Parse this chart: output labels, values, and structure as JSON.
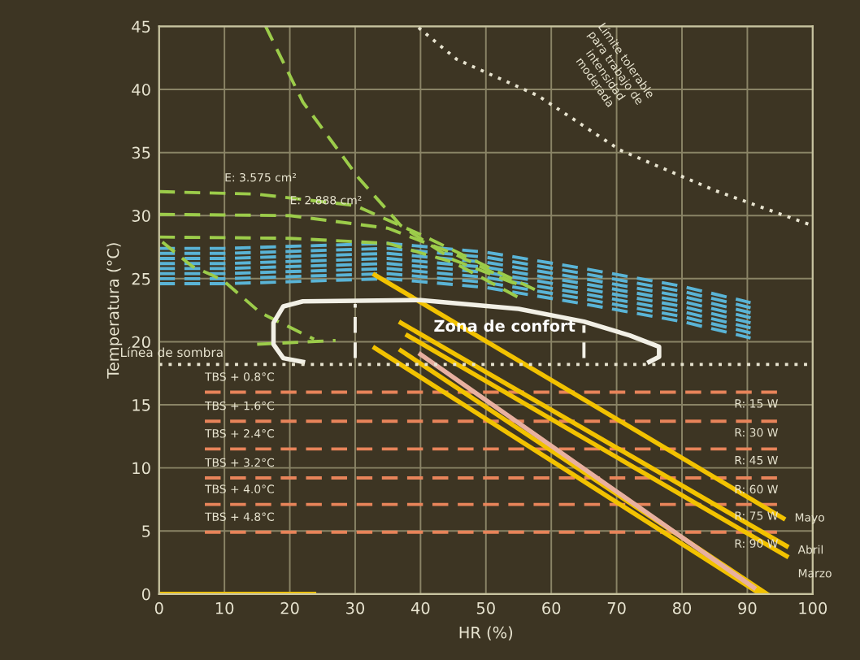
{
  "chart_data": {
    "type": "line",
    "xlabel": "HR (%)",
    "ylabel": "Temperatura (°C)",
    "xlim": [
      0,
      100
    ],
    "ylim": [
      0,
      45
    ],
    "xticks": [
      0,
      10,
      20,
      30,
      40,
      50,
      60,
      70,
      80,
      90,
      100
    ],
    "yticks": [
      0,
      5,
      10,
      15,
      20,
      25,
      30,
      35,
      40,
      45
    ],
    "grid": true,
    "marker": "none",
    "ref_lines": [
      {
        "axis": "y",
        "value": 18.2,
        "label": "Línea de sombra",
        "color": "#e8e4d0",
        "line_style": "dotted"
      }
    ],
    "series": [
      {
        "color": "#5ab4d6",
        "line_style": "dashed",
        "x": [
          0,
          10,
          35,
          50,
          65,
          80,
          90.5
        ],
        "values": [
          24.6,
          24.6,
          25.0,
          24.3,
          23.0,
          21.6,
          20.3
        ]
      },
      {
        "color": "#5ab4d6",
        "line_style": "dashed",
        "x": [
          0,
          10,
          35,
          50,
          65,
          80,
          90.5
        ],
        "values": [
          25.0,
          25.0,
          25.4,
          24.7,
          23.4,
          22.0,
          20.7
        ]
      },
      {
        "color": "#5ab4d6",
        "line_style": "dashed",
        "x": [
          0,
          10,
          35,
          50,
          65,
          80,
          90.5
        ],
        "values": [
          25.4,
          25.4,
          25.8,
          25.1,
          23.8,
          22.4,
          21.1
        ]
      },
      {
        "color": "#5ab4d6",
        "line_style": "dashed",
        "x": [
          0,
          10,
          35,
          50,
          65,
          80,
          90.5
        ],
        "values": [
          25.8,
          25.8,
          26.2,
          25.5,
          24.2,
          22.8,
          21.5
        ]
      },
      {
        "color": "#5ab4d6",
        "line_style": "dashed",
        "x": [
          0,
          10,
          35,
          50,
          65,
          80,
          90.5
        ],
        "values": [
          26.2,
          26.2,
          26.6,
          25.9,
          24.6,
          23.2,
          21.9
        ]
      },
      {
        "color": "#5ab4d6",
        "line_style": "dashed",
        "x": [
          0,
          10,
          35,
          50,
          65,
          80,
          90.5
        ],
        "values": [
          26.6,
          26.6,
          27.0,
          26.3,
          25.0,
          23.6,
          22.3
        ]
      },
      {
        "color": "#5ab4d6",
        "line_style": "dashed",
        "x": [
          0,
          10,
          35,
          50,
          65,
          80,
          90.5
        ],
        "values": [
          27.0,
          27.0,
          27.4,
          26.7,
          25.4,
          24.0,
          22.7
        ]
      },
      {
        "color": "#5ab4d6",
        "line_style": "dashed",
        "x": [
          0,
          10,
          35,
          50,
          65,
          80,
          90.5
        ],
        "values": [
          27.4,
          27.4,
          27.8,
          27.1,
          25.8,
          24.4,
          23.1
        ]
      },
      {
        "color": "#9ccc4a",
        "line_style": "dashed",
        "x": [
          16.3,
          22,
          30.5,
          37,
          45,
          55
        ],
        "values": [
          45,
          39,
          33,
          29.2,
          26.5,
          24.5
        ]
      },
      {
        "color": "#9ccc4a",
        "line_style": "dashed",
        "x": [
          0,
          15,
          30,
          40,
          50,
          58
        ],
        "values": [
          31.9,
          31.7,
          30.8,
          28.5,
          26,
          24
        ]
      },
      {
        "color": "#9ccc4a",
        "line_style": "dashed",
        "x": [
          0,
          20,
          35,
          45,
          55
        ],
        "values": [
          30.1,
          30,
          29,
          27,
          24.5
        ]
      },
      {
        "color": "#9ccc4a",
        "line_style": "dashed",
        "x": [
          0,
          20,
          35,
          45,
          55
        ],
        "values": [
          28.3,
          28.2,
          27.8,
          26.3,
          23.5
        ]
      },
      {
        "color": "#9ccc4a",
        "line_style": "dashed",
        "x": [
          0.5,
          5,
          9.7,
          15.5,
          23.7
        ],
        "values": [
          27.9,
          26,
          24.9,
          22.3,
          20.2
        ]
      },
      {
        "color": "#9ccc4a",
        "line_style": "dashed",
        "x": [
          15,
          27
        ],
        "values": [
          19.8,
          20.1
        ]
      },
      {
        "color": "#e8845a",
        "line_style": "dashed",
        "x": [
          7,
          95
        ],
        "values": [
          16.0,
          16.0
        ]
      },
      {
        "color": "#e8845a",
        "line_style": "dashed",
        "x": [
          7,
          95
        ],
        "values": [
          13.7,
          13.7
        ]
      },
      {
        "color": "#e8845a",
        "line_style": "dashed",
        "x": [
          7,
          95
        ],
        "values": [
          11.5,
          11.5
        ]
      },
      {
        "color": "#e8845a",
        "line_style": "dashed",
        "x": [
          7,
          95
        ],
        "values": [
          9.2,
          9.2
        ]
      },
      {
        "color": "#e8845a",
        "line_style": "dashed",
        "x": [
          7,
          95
        ],
        "values": [
          7.1,
          7.1
        ]
      },
      {
        "color": "#e8845a",
        "line_style": "dashed",
        "x": [
          7,
          95
        ],
        "values": [
          4.9,
          4.9
        ]
      },
      {
        "color": "#f2c200",
        "line_style": "solid",
        "x": [
          33,
          95.5
        ],
        "values": [
          25.3,
          6.0
        ]
      },
      {
        "color": "#f2c200",
        "line_style": "solid",
        "x": [
          37,
          96
        ],
        "values": [
          21.5,
          3.8
        ]
      },
      {
        "color": "#f2c200",
        "line_style": "solid",
        "x": [
          38,
          96
        ],
        "values": [
          20.5,
          3.0
        ]
      },
      {
        "color": "#f2c200",
        "line_style": "solid",
        "x": [
          33,
          92
        ],
        "values": [
          19.5,
          0
        ]
      },
      {
        "color": "#f2c200",
        "line_style": "solid",
        "x": [
          37,
          93
        ],
        "values": [
          19.3,
          0
        ]
      },
      {
        "color": "#e8b0a0",
        "line_style": "solid",
        "x": [
          40,
          91
        ],
        "values": [
          19,
          0.5
        ]
      },
      {
        "color": "#f2c200",
        "line_style": "solid",
        "x": [
          0,
          23.7
        ],
        "values": [
          0,
          0
        ]
      },
      {
        "color": "#f2f0e6",
        "line_style": "solid",
        "x": [
          22,
          19,
          17.5,
          17.5,
          19,
          22,
          40,
          55,
          65,
          72,
          76.5,
          76.5,
          75
        ],
        "values": [
          18.4,
          18.7,
          19.8,
          21.5,
          22.8,
          23.2,
          23.3,
          22.6,
          21.6,
          20.5,
          19.6,
          18.8,
          18.4
        ]
      },
      {
        "color": "#f2f0e6",
        "line_style": "dashed",
        "x": [
          30,
          30
        ],
        "values": [
          18.7,
          23.0
        ]
      },
      {
        "color": "#f2f0e6",
        "line_style": "dashed",
        "x": [
          65,
          65
        ],
        "values": [
          18.7,
          21.3
        ]
      },
      {
        "color": "#e8e4d0",
        "line_style": "dotted",
        "x": [
          39.7,
          45.5,
          58,
          70.5,
          85,
          100
        ],
        "values": [
          44.9,
          42.4,
          39.5,
          35.2,
          32,
          29.2
        ]
      }
    ],
    "annotations": [
      "Zona de confort",
      "Límite tolerable\npara trabajo de\nintensidad\nmoderada",
      {
        "text": "E: 3.575 cm²",
        "x": 10,
        "y": 31.8
      },
      {
        "text": "E: 2.888 cm²",
        "x": 20,
        "y": 30.0
      },
      {
        "text": "TBS + 0.8°C",
        "x": 7,
        "y": 16.0
      },
      {
        "text": "TBS + 1.6°C",
        "x": 7,
        "y": 13.7
      },
      {
        "text": "TBS + 2.4°C",
        "x": 7,
        "y": 11.5
      },
      {
        "text": "TBS + 3.2°C",
        "x": 7,
        "y": 9.2
      },
      {
        "text": "TBS + 4.0°C",
        "x": 7,
        "y": 7.1
      },
      {
        "text": "TBS + 4.8°C",
        "x": 7,
        "y": 4.9
      },
      {
        "text": "R: 15 W",
        "x": 88,
        "y": 16.0
      },
      {
        "text": "R: 30 W",
        "x": 88,
        "y": 13.7
      },
      {
        "text": "R: 45 W",
        "x": 88,
        "y": 11.5
      },
      {
        "text": "R: 60 W",
        "x": 88,
        "y": 9.2
      },
      {
        "text": "R: 75 W",
        "x": 88,
        "y": 7.1
      },
      {
        "text": "R: 90 W",
        "x": 88,
        "y": 4.9
      },
      {
        "text": "Mayo",
        "x": 95.5,
        "y": 6.0
      },
      {
        "text": "Abril",
        "x": 96,
        "y": 3.8
      },
      {
        "text": "Marzo",
        "x": 96,
        "y": 3.0
      }
    ]
  }
}
